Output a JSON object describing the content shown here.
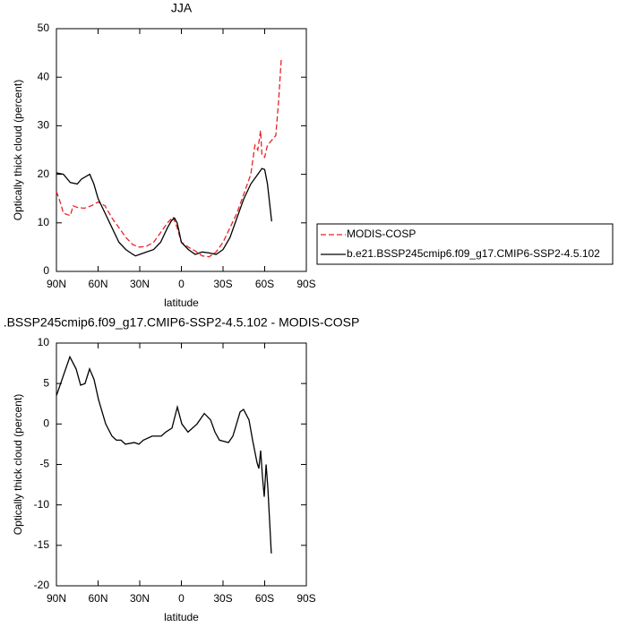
{
  "chart_data": [
    {
      "type": "line",
      "title": "JJA",
      "xlabel": "latitude",
      "ylabel": "Optically thick cloud (percent)",
      "xlim": [
        90,
        -90
      ],
      "xticks": [
        {
          "value": 90,
          "label": "90N"
        },
        {
          "value": 60,
          "label": "60N"
        },
        {
          "value": 30,
          "label": "30N"
        },
        0,
        {
          "value": -30,
          "label": "30S"
        },
        {
          "value": -60,
          "label": "60S"
        },
        {
          "value": -90,
          "label": "90S"
        }
      ],
      "ylim": [
        0,
        50
      ],
      "yticks": [
        0,
        10,
        20,
        30,
        40,
        50
      ],
      "legend": "right",
      "series": [
        {
          "name": "MODIS-COSP",
          "color": "#e8242a",
          "style": "dashed",
          "x": [
            90,
            87,
            85,
            80,
            78,
            75,
            70,
            65,
            60,
            55,
            50,
            45,
            40,
            35,
            30,
            25,
            20,
            15,
            10,
            6,
            3,
            0,
            -5,
            -10,
            -15,
            -20,
            -25,
            -30,
            -35,
            -40,
            -45,
            -50,
            -53,
            -55,
            -57,
            -58,
            -60,
            -62,
            -65,
            -68,
            -70,
            -72
          ],
          "values": [
            16.5,
            14,
            12,
            11.5,
            13.5,
            13.2,
            13,
            13.5,
            14.3,
            13.5,
            11,
            9,
            7,
            5.5,
            5,
            5.2,
            6,
            8,
            10,
            11.2,
            9,
            6,
            5,
            4.2,
            3.2,
            3,
            4,
            6,
            9,
            12,
            16,
            20,
            26,
            25,
            29,
            24,
            23.5,
            26,
            27,
            28,
            35,
            44
          ]
        },
        {
          "name": "b.e21.BSSP245cmip6.f09_g17.CMIP6-SSP2-4.5.102",
          "color": "#000000",
          "style": "solid",
          "x": [
            90,
            85,
            80,
            75,
            72,
            66,
            63,
            60,
            55,
            50,
            45,
            40,
            35,
            33,
            30,
            25,
            20,
            15,
            10,
            7,
            5,
            3,
            0,
            -5,
            -10,
            -15,
            -20,
            -25,
            -30,
            -35,
            -40,
            -45,
            -50,
            -55,
            -58,
            -60,
            -62,
            -65
          ],
          "values": [
            20.3,
            20,
            18.3,
            18,
            19,
            20,
            18,
            15,
            12,
            9,
            6,
            4.5,
            3.5,
            3.2,
            3.5,
            4,
            4.5,
            6,
            9,
            10.5,
            11,
            10,
            6,
            4.5,
            3.5,
            4,
            3.8,
            3.5,
            4.5,
            7,
            11,
            15,
            18,
            20,
            21.2,
            21,
            18,
            10.3
          ]
        }
      ]
    },
    {
      "type": "line",
      "title": ".BSSP245cmip6.f09_g17.CMIP6-SSP2-4.5.102 - MODIS-COSP",
      "xlabel": "latitude",
      "ylabel": "Optically thick cloud (percent)",
      "xlim": [
        90,
        -90
      ],
      "xticks": [
        {
          "value": 90,
          "label": "90N"
        },
        {
          "value": 60,
          "label": "60N"
        },
        {
          "value": 30,
          "label": "30N"
        },
        0,
        {
          "value": -30,
          "label": "30S"
        },
        {
          "value": -60,
          "label": "60S"
        },
        {
          "value": -90,
          "label": "90S"
        }
      ],
      "ylim": [
        -20,
        10
      ],
      "yticks": [
        -20,
        -15,
        -10,
        -5,
        0,
        5,
        10
      ],
      "series": [
        {
          "color": "#000000",
          "style": "solid",
          "x": [
            90,
            80.3,
            75.8,
            72.6,
            69.4,
            66.1,
            62.9,
            59.7,
            54.5,
            50,
            46.8,
            43.5,
            40.3,
            33.9,
            30.6,
            27.4,
            21,
            14.5,
            11.3,
            6.8,
            2.9,
            -0.3,
            -4.8,
            -11.3,
            -16.5,
            -21,
            -24.2,
            -27.4,
            -33.9,
            -37.1,
            -42.3,
            -44.8,
            -48.7,
            -51.3,
            -54.5,
            -55.8,
            -57.1,
            -58.4,
            -59.7,
            -61,
            -62.3,
            -64.8
          ],
          "values": [
            3.5,
            8.3,
            6.8,
            4.8,
            5,
            6.8,
            5.5,
            3,
            0,
            -1.5,
            -2,
            -2,
            -2.5,
            -2.3,
            -2.5,
            -2,
            -1.5,
            -1.5,
            -1,
            -0.5,
            2.1,
            0,
            -1,
            0,
            1.3,
            0.5,
            -1,
            -2,
            -2.3,
            -1.5,
            1.5,
            1.8,
            0.5,
            -2,
            -4.8,
            -5.5,
            -3.3,
            -6.5,
            -9,
            -5,
            -8,
            -16
          ]
        }
      ]
    }
  ]
}
